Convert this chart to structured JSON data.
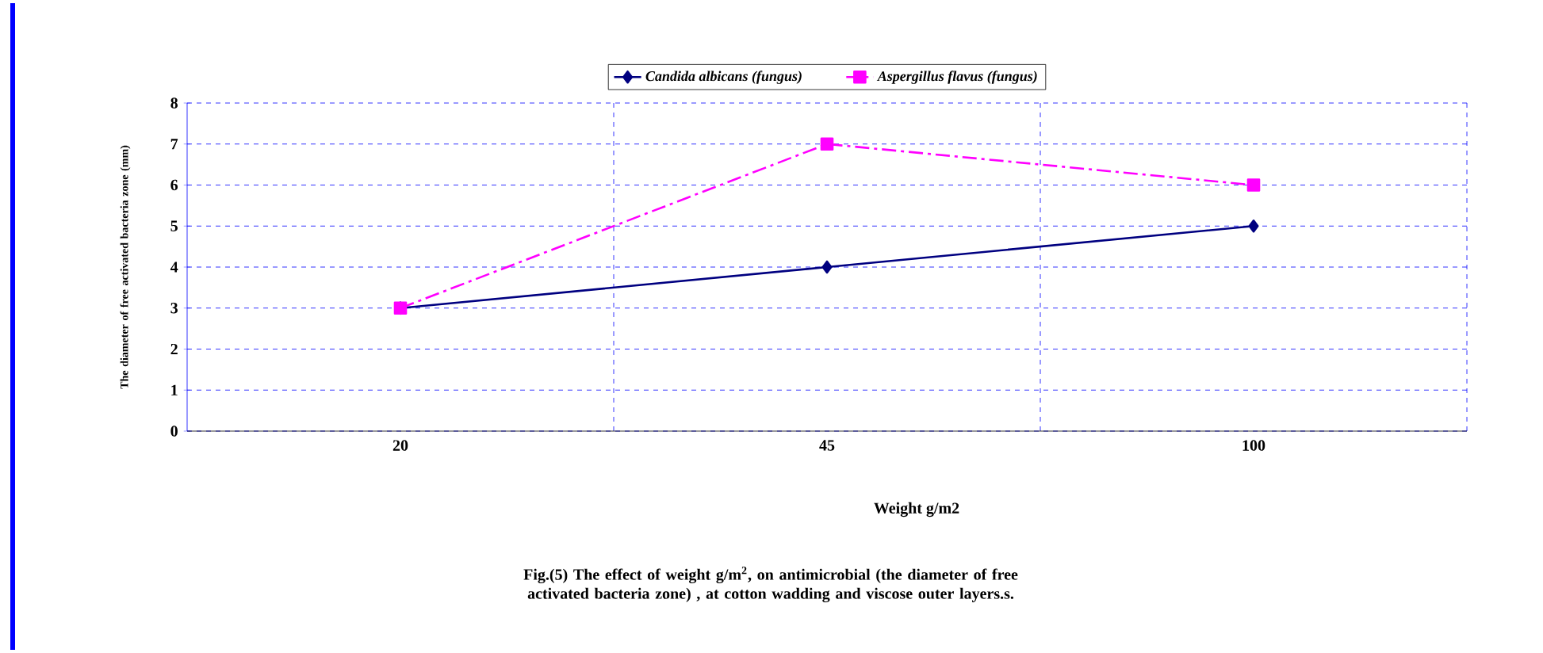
{
  "chart_data": {
    "type": "line",
    "categories": [
      "20",
      "45",
      "100"
    ],
    "series": [
      {
        "name": "*Candida albicans (fungus)*",
        "color": "#000080",
        "values": [
          3,
          4,
          5
        ],
        "marker": "diamond",
        "line_style": "solid"
      },
      {
        "name": "*Aspergillus flavus (fungus)*",
        "color": "#ff00ff",
        "values": [
          3,
          7,
          6
        ],
        "marker": "square",
        "line_style": "dashed"
      }
    ],
    "xlabel": "Weight g/m2",
    "ylabel": "The diameter of free activated bacteria zone (mm)",
    "ylim": [
      0,
      8
    ],
    "yticks": [
      0,
      1,
      2,
      3,
      4,
      5,
      6,
      7,
      8
    ],
    "grid": true,
    "legend": "top",
    "annotations": [
      "Fig.(5)  The  effect of weight g/m$^{2}$,  on antimicrobial (the diameter of free activated bacteria zone) , at cotton wadding and viscose outer layers.s."
    ]
  }
}
